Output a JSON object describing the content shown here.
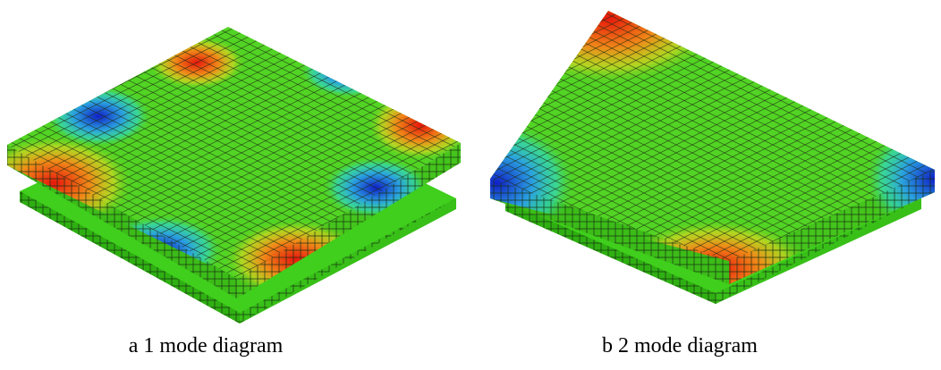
{
  "figure": {
    "panels": [
      {
        "caption": "a 1 mode diagram"
      },
      {
        "caption": "b 2 mode diagram"
      }
    ]
  }
}
